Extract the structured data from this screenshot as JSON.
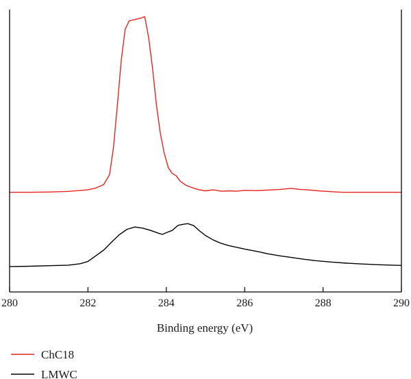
{
  "chart_data": {
    "type": "line",
    "title": "",
    "xlabel": "Binding energy (eV)",
    "ylabel": "",
    "xlim": [
      280,
      290
    ],
    "ylim": [
      0,
      1
    ],
    "x_ticks": [
      "280",
      "282",
      "284",
      "286",
      "288",
      "290"
    ],
    "y_ticks": [],
    "grid": false,
    "legend_position": "bottom-left, below plot",
    "series": [
      {
        "name": "ChC18",
        "color": "#e8231f",
        "points": [
          [
            280.0,
            0.353
          ],
          [
            280.5,
            0.353
          ],
          [
            281.0,
            0.354
          ],
          [
            281.5,
            0.356
          ],
          [
            282.0,
            0.362
          ],
          [
            282.2,
            0.368
          ],
          [
            282.4,
            0.38
          ],
          [
            282.55,
            0.415
          ],
          [
            282.65,
            0.51
          ],
          [
            282.75,
            0.66
          ],
          [
            282.85,
            0.82
          ],
          [
            282.95,
            0.93
          ],
          [
            283.05,
            0.96
          ],
          [
            283.2,
            0.965
          ],
          [
            283.35,
            0.97
          ],
          [
            283.45,
            0.975
          ],
          [
            283.55,
            0.9
          ],
          [
            283.65,
            0.79
          ],
          [
            283.75,
            0.66
          ],
          [
            283.85,
            0.56
          ],
          [
            283.95,
            0.49
          ],
          [
            284.05,
            0.44
          ],
          [
            284.15,
            0.42
          ],
          [
            284.25,
            0.412
          ],
          [
            284.35,
            0.393
          ],
          [
            284.5,
            0.378
          ],
          [
            284.65,
            0.37
          ],
          [
            284.8,
            0.363
          ],
          [
            285.0,
            0.358
          ],
          [
            285.2,
            0.362
          ],
          [
            285.4,
            0.357
          ],
          [
            285.6,
            0.358
          ],
          [
            285.8,
            0.357
          ],
          [
            286.0,
            0.36
          ],
          [
            286.3,
            0.359
          ],
          [
            286.6,
            0.361
          ],
          [
            286.9,
            0.363
          ],
          [
            287.2,
            0.367
          ],
          [
            287.4,
            0.363
          ],
          [
            287.6,
            0.362
          ],
          [
            287.9,
            0.358
          ],
          [
            288.2,
            0.355
          ],
          [
            288.5,
            0.353
          ],
          [
            289.0,
            0.353
          ],
          [
            290.0,
            0.353
          ]
        ]
      },
      {
        "name": "LMWC",
        "color": "#000000",
        "points": [
          [
            280.0,
            0.09
          ],
          [
            280.5,
            0.091
          ],
          [
            281.0,
            0.093
          ],
          [
            281.5,
            0.095
          ],
          [
            281.8,
            0.1
          ],
          [
            282.0,
            0.108
          ],
          [
            282.2,
            0.128
          ],
          [
            282.4,
            0.148
          ],
          [
            282.6,
            0.176
          ],
          [
            282.8,
            0.203
          ],
          [
            283.0,
            0.222
          ],
          [
            283.2,
            0.23
          ],
          [
            283.4,
            0.226
          ],
          [
            283.6,
            0.218
          ],
          [
            283.8,
            0.208
          ],
          [
            283.9,
            0.204
          ],
          [
            284.0,
            0.21
          ],
          [
            284.15,
            0.218
          ],
          [
            284.3,
            0.236
          ],
          [
            284.45,
            0.24
          ],
          [
            284.55,
            0.242
          ],
          [
            284.7,
            0.235
          ],
          [
            284.85,
            0.216
          ],
          [
            285.0,
            0.2
          ],
          [
            285.2,
            0.184
          ],
          [
            285.4,
            0.172
          ],
          [
            285.6,
            0.164
          ],
          [
            285.8,
            0.158
          ],
          [
            286.0,
            0.152
          ],
          [
            286.3,
            0.144
          ],
          [
            286.6,
            0.135
          ],
          [
            286.9,
            0.128
          ],
          [
            287.2,
            0.122
          ],
          [
            287.5,
            0.116
          ],
          [
            287.8,
            0.111
          ],
          [
            288.2,
            0.106
          ],
          [
            288.6,
            0.102
          ],
          [
            289.0,
            0.099
          ],
          [
            289.5,
            0.096
          ],
          [
            290.0,
            0.094
          ]
        ]
      }
    ]
  }
}
